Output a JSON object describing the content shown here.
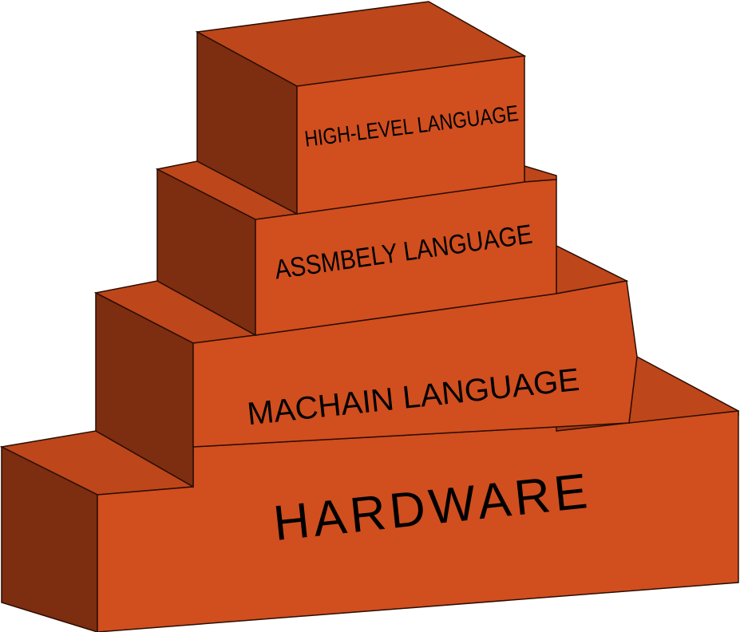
{
  "diagram": {
    "colors": {
      "front": "#d14e1f",
      "side": "#a53d18",
      "dark_side": "#7d2d10",
      "top": "#bd461b",
      "text": "#000000"
    },
    "layers": [
      {
        "label": "HIGH-LEVEL LANGUAGE"
      },
      {
        "label": "ASSMBELY LANGUAGE"
      },
      {
        "label": "MACHAIN LANGUAGE"
      },
      {
        "label": "HARDWARE"
      }
    ]
  }
}
